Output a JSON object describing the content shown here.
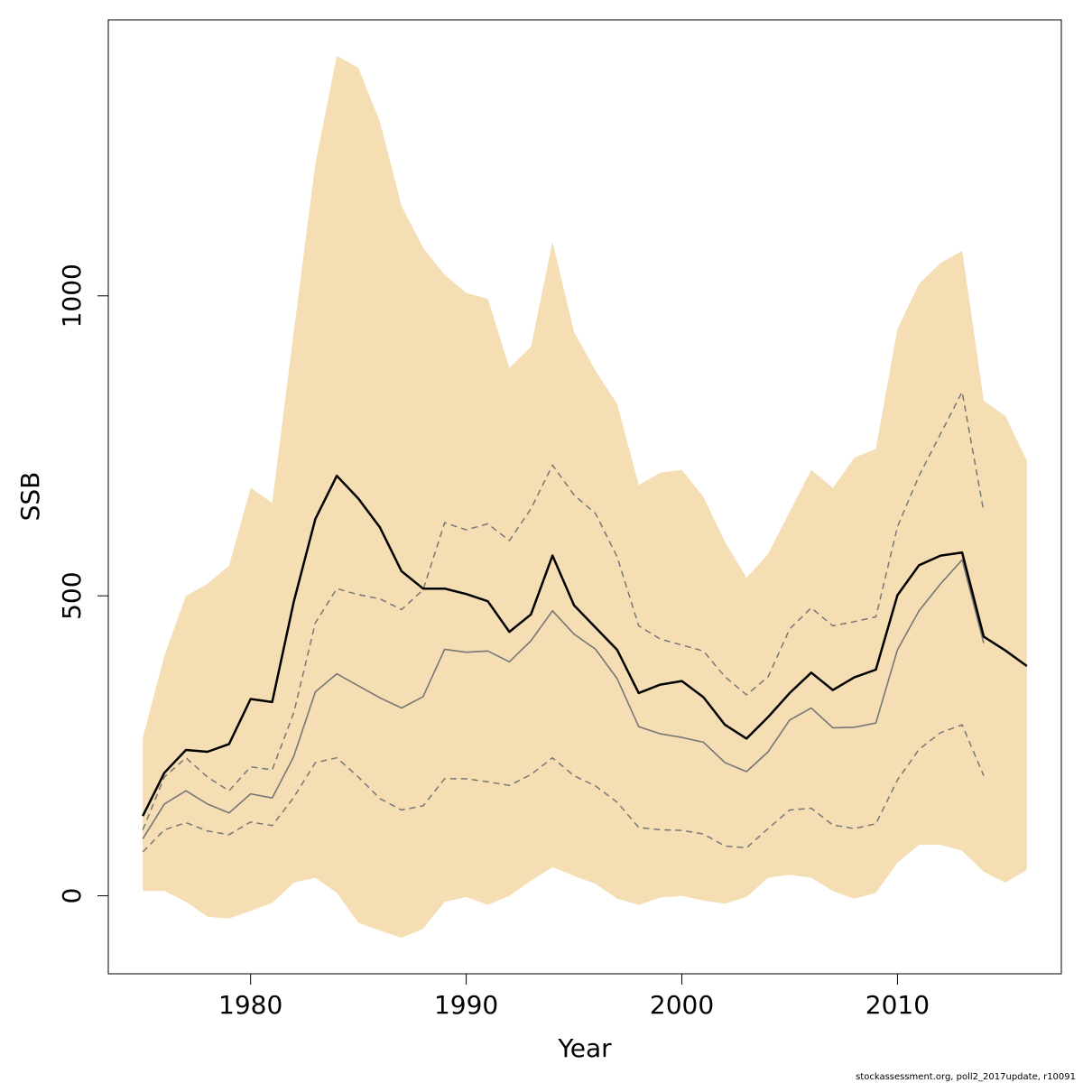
{
  "chart_data": {
    "type": "line",
    "xlabel": "Year",
    "ylabel": "SSB",
    "xlim": [
      1973.4,
      2017.6
    ],
    "ylim": [
      -130,
      1460
    ],
    "x_ticks": [
      1980,
      1990,
      2000,
      2010
    ],
    "y_ticks": [
      0,
      500,
      1000
    ],
    "grid": false,
    "band_color": "#F5DEB3",
    "x": [
      1975,
      1976,
      1977,
      1978,
      1979,
      1980,
      1981,
      1982,
      1983,
      1984,
      1985,
      1986,
      1987,
      1988,
      1989,
      1990,
      1991,
      1992,
      1993,
      1994,
      1995,
      1996,
      1997,
      1998,
      1999,
      2000,
      2001,
      2002,
      2003,
      2004,
      2005,
      2006,
      2007,
      2008,
      2009,
      2010,
      2011,
      2012,
      2013,
      2014,
      2015,
      2016
    ],
    "band_upper": [
      263,
      400,
      500,
      520,
      550,
      680,
      655,
      940,
      1220,
      1400,
      1380,
      1290,
      1150,
      1080,
      1035,
      1005,
      995,
      880,
      915,
      1090,
      940,
      875,
      820,
      685,
      705,
      710,
      665,
      590,
      530,
      570,
      640,
      710,
      680,
      730,
      745,
      945,
      1020,
      1055,
      1075,
      825,
      800,
      725
    ],
    "band_lower": [
      8,
      8,
      -10,
      -35,
      -38,
      -25,
      -12,
      22,
      30,
      5,
      -45,
      -58,
      -70,
      -55,
      -10,
      -2,
      -15,
      0,
      25,
      48,
      33,
      20,
      -5,
      -15,
      -3,
      0,
      -8,
      -13,
      -2,
      30,
      35,
      30,
      8,
      -5,
      5,
      55,
      85,
      85,
      75,
      40,
      22,
      43
    ],
    "series": [
      {
        "style": "bold",
        "color": "#000000",
        "values": [
          133,
          205,
          243,
          240,
          253,
          328,
          323,
          490,
          628,
          700,
          662,
          614,
          541,
          512,
          512,
          503,
          491,
          440,
          469,
          567,
          484,
          447,
          410,
          338,
          352,
          358,
          331,
          285,
          262,
          298,
          338,
          372,
          343,
          364,
          377,
          501,
          551,
          567,
          572,
          432,
          409,
          383
        ]
      },
      {
        "style": "thin",
        "color": "#777777",
        "values": [
          95,
          153,
          175,
          153,
          138,
          170,
          163,
          232,
          340,
          370,
          350,
          330,
          313,
          332,
          411,
          406,
          408,
          390,
          425,
          475,
          436,
          411,
          362,
          282,
          270,
          264,
          256,
          222,
          207,
          240,
          293,
          313,
          280,
          281,
          288,
          410,
          475,
          520,
          560,
          421,
          null,
          null
        ]
      },
      {
        "style": "dashed",
        "color": "#777777",
        "values": [
          110,
          198,
          230,
          198,
          175,
          215,
          210,
          305,
          455,
          512,
          502,
          495,
          477,
          510,
          622,
          610,
          620,
          592,
          645,
          718,
          668,
          637,
          565,
          450,
          428,
          418,
          408,
          365,
          335,
          365,
          445,
          480,
          450,
          457,
          465,
          615,
          700,
          770,
          840,
          640,
          null,
          null
        ]
      },
      {
        "style": "dashed",
        "color": "#777777",
        "values": [
          73,
          110,
          122,
          108,
          102,
          123,
          117,
          164,
          222,
          230,
          198,
          162,
          143,
          150,
          195,
          195,
          190,
          184,
          202,
          230,
          200,
          183,
          156,
          114,
          110,
          109,
          103,
          83,
          80,
          112,
          143,
          146,
          118,
          112,
          120,
          193,
          244,
          272,
          285,
          200,
          null,
          null
        ]
      }
    ]
  },
  "footer": "stockassessment.org, poll2_2017update, r10091"
}
